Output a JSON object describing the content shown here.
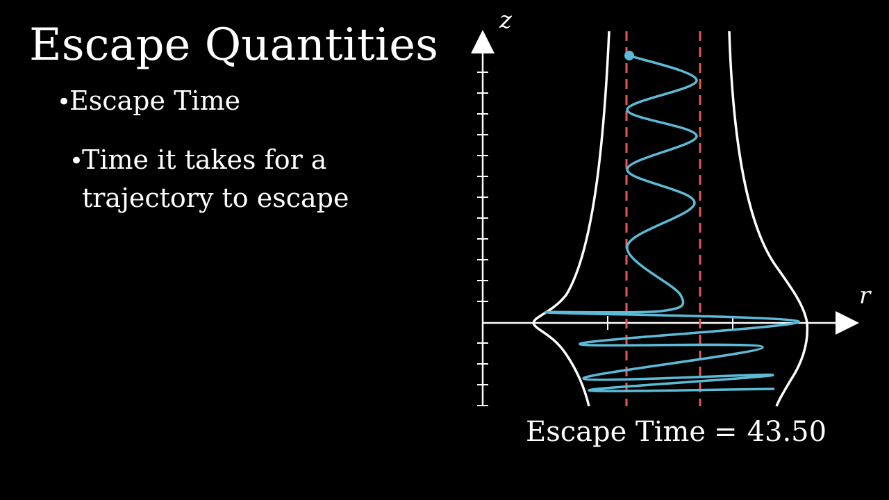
{
  "title": "Escape Quantities",
  "bullets": {
    "level1": {
      "marker": "•",
      "text": "Escape Time"
    },
    "level2": {
      "marker": "•",
      "text": "Time it takes for a trajectory to escape"
    }
  },
  "diagram": {
    "axes": {
      "vertical_label": "z",
      "horizontal_label": "r"
    },
    "colors": {
      "background": "#000000",
      "axes": "#ffffff",
      "boundary": "#ffffff",
      "dashed_lines": "#e25c52",
      "trajectory": "#5cbcd8"
    }
  },
  "readout": {
    "label": "Escape Time",
    "equals": "=",
    "value": "43.50"
  }
}
